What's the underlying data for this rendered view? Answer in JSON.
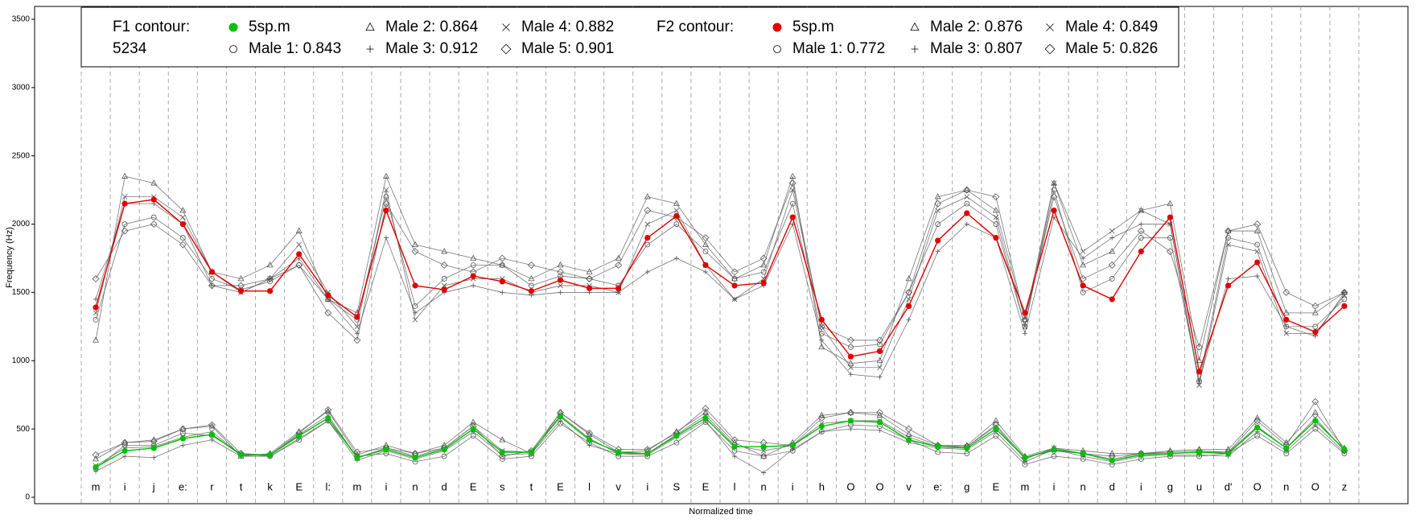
{
  "chart_data": {
    "type": "line",
    "ylabel": "Frequency (Hz)",
    "xlabel": "Normalized time",
    "ylim": [
      0,
      3500
    ],
    "yticks": [
      0,
      500,
      1000,
      1500,
      2000,
      2500,
      3000,
      3500
    ],
    "segment_lines": true,
    "legend_groups": [
      {
        "title": "F1 contour:",
        "subtitle": "5234"
      },
      {
        "title": "F2 contour:"
      }
    ],
    "categories": [
      "m",
      "i",
      "j",
      "e:",
      "r",
      "t",
      "k",
      "E",
      "l:",
      "m",
      "i",
      "n",
      "d",
      "E",
      "s",
      "t",
      "E",
      "l",
      "v",
      "i",
      "S",
      "E",
      "l",
      "n",
      "i",
      "h",
      "O",
      "O",
      "v",
      "e:",
      "g",
      "E",
      "m",
      "i",
      "n",
      "d",
      "i",
      "g",
      "u",
      "d'",
      "O",
      "n",
      "O",
      "z"
    ],
    "series": [
      {
        "name": "5sp.m",
        "group": 0,
        "marker": "dot",
        "color": "#00c000",
        "values": [
          220,
          340,
          360,
          430,
          460,
          310,
          310,
          450,
          580,
          290,
          350,
          290,
          350,
          500,
          330,
          330,
          590,
          420,
          330,
          320,
          450,
          580,
          370,
          370,
          380,
          520,
          560,
          550,
          420,
          370,
          360,
          500,
          290,
          350,
          320,
          270,
          310,
          320,
          330,
          320,
          510,
          360,
          560,
          350
        ]
      },
      {
        "name": "Male 1: 0.843",
        "group": 0,
        "marker": "circle",
        "color": "#555555",
        "values": [
          210,
          380,
          380,
          470,
          450,
          320,
          300,
          420,
          560,
          300,
          320,
          260,
          300,
          450,
          280,
          300,
          540,
          400,
          300,
          300,
          400,
          550,
          340,
          300,
          340,
          480,
          530,
          520,
          420,
          330,
          320,
          450,
          240,
          300,
          280,
          240,
          280,
          300,
          300,
          320,
          450,
          320,
          500,
          320
        ]
      },
      {
        "name": "Male 2: 0.864",
        "group": 0,
        "marker": "triangle",
        "color": "#555555",
        "values": [
          280,
          400,
          420,
          500,
          520,
          300,
          320,
          480,
          630,
          310,
          380,
          320,
          380,
          550,
          420,
          320,
          620,
          460,
          330,
          340,
          480,
          620,
          400,
          300,
          400,
          600,
          620,
          600,
          460,
          380,
          380,
          560,
          300,
          360,
          340,
          320,
          320,
          340,
          350,
          350,
          580,
          400,
          620,
          360
        ]
      },
      {
        "name": "Male 3: 0.912",
        "group": 0,
        "marker": "plus",
        "color": "#555555",
        "values": [
          190,
          300,
          290,
          380,
          420,
          300,
          300,
          430,
          560,
          270,
          340,
          280,
          340,
          480,
          310,
          320,
          560,
          380,
          320,
          310,
          440,
          560,
          300,
          180,
          350,
          480,
          500,
          490,
          400,
          360,
          350,
          480,
          260,
          350,
          300,
          260,
          300,
          310,
          310,
          300,
          480,
          340,
          530,
          330
        ]
      },
      {
        "name": "Male 4: 0.882",
        "group": 0,
        "marker": "x",
        "color": "#555555",
        "values": [
          230,
          360,
          370,
          440,
          480,
          310,
          310,
          460,
          600,
          290,
          360,
          300,
          360,
          520,
          340,
          330,
          600,
          430,
          320,
          320,
          460,
          600,
          380,
          340,
          380,
          540,
          560,
          560,
          440,
          370,
          370,
          520,
          280,
          360,
          320,
          280,
          320,
          320,
          330,
          330,
          520,
          360,
          580,
          340
        ]
      },
      {
        "name": "Male 5: 0.901",
        "group": 0,
        "marker": "diamond",
        "color": "#555555",
        "values": [
          310,
          400,
          410,
          500,
          530,
          320,
          310,
          470,
          640,
          330,
          360,
          320,
          360,
          520,
          300,
          340,
          620,
          470,
          350,
          350,
          470,
          650,
          420,
          400,
          380,
          580,
          620,
          620,
          500,
          380,
          370,
          530,
          290,
          340,
          320,
          300,
          320,
          330,
          340,
          330,
          560,
          380,
          700,
          340
        ]
      },
      {
        "name": "5sp.m",
        "group": 1,
        "marker": "dot",
        "color": "#e00000",
        "values": [
          1390,
          2150,
          2180,
          2000,
          1650,
          1510,
          1510,
          1780,
          1480,
          1320,
          2100,
          1550,
          1520,
          1620,
          1580,
          1510,
          1590,
          1530,
          1530,
          1900,
          2060,
          1700,
          1550,
          1570,
          2050,
          1300,
          1030,
          1070,
          1400,
          1880,
          2080,
          1900,
          1350,
          2100,
          1550,
          1450,
          1800,
          2050,
          920,
          1550,
          1720,
          1300,
          1210,
          1400
        ]
      },
      {
        "name": "Male 1: 0.772",
        "group": 1,
        "marker": "circle",
        "color": "#555555",
        "values": [
          1300,
          2000,
          2050,
          1900,
          1600,
          1520,
          1580,
          1700,
          1450,
          1300,
          2200,
          1400,
          1600,
          1700,
          1700,
          1550,
          1620,
          1600,
          1550,
          1850,
          2000,
          1800,
          1600,
          1650,
          2150,
          1200,
          1100,
          1120,
          1500,
          2000,
          2150,
          2000,
          1250,
          2250,
          1500,
          1600,
          1900,
          1900,
          850,
          1900,
          1850,
          1250,
          1250,
          1450
        ]
      },
      {
        "name": "Male 2: 0.876",
        "group": 1,
        "marker": "triangle",
        "color": "#555555",
        "values": [
          1150,
          2350,
          2300,
          2100,
          1650,
          1600,
          1700,
          1950,
          1450,
          1350,
          2350,
          1850,
          1800,
          1750,
          1700,
          1600,
          1700,
          1650,
          1750,
          2200,
          2150,
          1850,
          1600,
          1700,
          2350,
          1100,
          980,
          1000,
          1600,
          2200,
          2250,
          2100,
          1300,
          2300,
          1700,
          1800,
          2100,
          2150,
          1000,
          1950,
          1950,
          1350,
          1350,
          1500
        ]
      },
      {
        "name": "Male 3: 0.807",
        "group": 1,
        "marker": "plus",
        "color": "#555555",
        "values": [
          1450,
          2150,
          2150,
          2000,
          1550,
          1500,
          1600,
          1750,
          1450,
          1200,
          1900,
          1350,
          1500,
          1550,
          1500,
          1480,
          1500,
          1500,
          1500,
          1650,
          1750,
          1650,
          1450,
          1550,
          2000,
          1150,
          900,
          880,
          1300,
          1800,
          2000,
          1900,
          1200,
          2050,
          1750,
          1900,
          2000,
          2000,
          850,
          1600,
          1620,
          1250,
          1180,
          1500
        ]
      },
      {
        "name": "Male 4: 0.849",
        "group": 1,
        "marker": "x",
        "color": "#555555",
        "values": [
          1350,
          2200,
          2200,
          2050,
          1650,
          1500,
          1600,
          1850,
          1500,
          1250,
          2250,
          1300,
          1550,
          1600,
          1600,
          1500,
          1550,
          1550,
          1500,
          2000,
          2100,
          1700,
          1450,
          1600,
          2250,
          1250,
          950,
          950,
          1450,
          2100,
          2200,
          2050,
          1250,
          2300,
          1800,
          1950,
          2100,
          2000,
          820,
          1850,
          1800,
          1200,
          1200,
          1480
        ]
      },
      {
        "name": "Male 5: 0.826",
        "group": 1,
        "marker": "diamond",
        "color": "#555555",
        "values": [
          1600,
          1950,
          2000,
          1850,
          1550,
          1550,
          1600,
          1700,
          1350,
          1150,
          2150,
          1800,
          1700,
          1650,
          1750,
          1700,
          1650,
          1600,
          1700,
          2100,
          2050,
          1900,
          1650,
          1750,
          2300,
          1250,
          1150,
          1150,
          1500,
          2150,
          2250,
          2200,
          1300,
          2200,
          1600,
          1700,
          1950,
          1800,
          1100,
          1950,
          2000,
          1500,
          1400,
          1500
        ]
      }
    ]
  }
}
